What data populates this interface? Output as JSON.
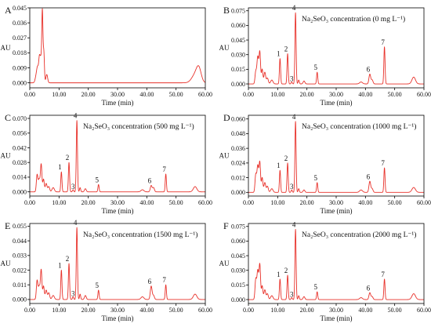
{
  "figure": {
    "trace_color": "#e8312a",
    "axis_color": "#000000"
  },
  "chart_data": [
    {
      "type": "line",
      "panel": "A",
      "title": "",
      "xlabel": "Time (min)",
      "ylabel": "AU",
      "xlim": [
        0,
        60
      ],
      "ylim": [
        -0.003,
        0.045
      ],
      "xticks": [
        "0.00",
        "10.00",
        "20.00",
        "30.00",
        "40.00",
        "50.00",
        "60.00"
      ],
      "yticks": [
        "0.000",
        "0.009",
        "0.018",
        "0.027",
        "0.036",
        "0.045"
      ],
      "baseline": 0.0,
      "peaks": [
        [
          2.2,
          0.004,
          0.35
        ],
        [
          2.7,
          0.008,
          0.3
        ],
        [
          3.3,
          0.014,
          0.25
        ],
        [
          3.8,
          0.013,
          0.25
        ],
        [
          4.3,
          0.042,
          0.2
        ],
        [
          4.8,
          0.018,
          0.2
        ],
        [
          5.8,
          0.005,
          0.3
        ],
        [
          56.6,
          0.005,
          1.2
        ],
        [
          57.8,
          0.007,
          0.8
        ]
      ],
      "peak_labels": []
    },
    {
      "type": "line",
      "panel": "B",
      "title": "Na₂SeO₃ concentration (0 mg L⁻¹)",
      "xlabel": "Time (min)",
      "ylabel": "AU",
      "xlim": [
        0,
        60
      ],
      "ylim": [
        -0.004,
        0.078
      ],
      "xticks": [
        "0.00",
        "10.00",
        "20.00",
        "30.00",
        "40.00",
        "50.00",
        "60.00"
      ],
      "yticks": [
        "0.000",
        "0.015",
        "0.030",
        "0.045",
        "0.060",
        "0.075"
      ],
      "baseline": 0.0,
      "peaks": [
        [
          2.5,
          0.012,
          0.25
        ],
        [
          3.2,
          0.028,
          0.3
        ],
        [
          3.9,
          0.032,
          0.25
        ],
        [
          4.7,
          0.015,
          0.25
        ],
        [
          5.6,
          0.012,
          0.3
        ],
        [
          6.5,
          0.006,
          0.3
        ],
        [
          8.0,
          0.004,
          0.4
        ],
        [
          10.8,
          0.026,
          0.2
        ],
        [
          13.4,
          0.031,
          0.2
        ],
        [
          14.8,
          0.002,
          0.2
        ],
        [
          16.1,
          0.073,
          0.2
        ],
        [
          17.2,
          0.004,
          0.2
        ],
        [
          19.0,
          0.003,
          0.3
        ],
        [
          23.5,
          0.012,
          0.2
        ],
        [
          38.5,
          0.002,
          0.5
        ],
        [
          41.5,
          0.01,
          0.3
        ],
        [
          42.3,
          0.004,
          0.3
        ],
        [
          46.5,
          0.038,
          0.2
        ],
        [
          56.5,
          0.007,
          0.6
        ]
      ],
      "peak_labels": [
        {
          "label": "1",
          "x": 10.8,
          "y": 0.026
        },
        {
          "label": "2",
          "x": 13.4,
          "y": 0.031
        },
        {
          "label": "3",
          "x": 14.8,
          "y": 0.002
        },
        {
          "label": "4",
          "x": 16.1,
          "y": 0.073
        },
        {
          "label": "5",
          "x": 23.5,
          "y": 0.012
        },
        {
          "label": "6",
          "x": 41.5,
          "y": 0.01
        },
        {
          "label": "7",
          "x": 46.5,
          "y": 0.038
        }
      ]
    },
    {
      "type": "line",
      "panel": "C",
      "title": "Na₂SeO₃ concentration (500 mg L⁻¹)",
      "xlabel": "Time (min)",
      "ylabel": "AU",
      "xlim": [
        0,
        60
      ],
      "ylim": [
        -0.004,
        0.073
      ],
      "xticks": [
        "0.00",
        "10.00",
        "20.00",
        "30.00",
        "40.00",
        "50.00",
        "60.00"
      ],
      "yticks": [
        "0.000",
        "0.014",
        "0.028",
        "0.042",
        "0.056",
        "0.070"
      ],
      "baseline": 0.0,
      "peaks": [
        [
          2.5,
          0.016,
          0.25
        ],
        [
          3.2,
          0.012,
          0.3
        ],
        [
          3.9,
          0.026,
          0.25
        ],
        [
          4.7,
          0.012,
          0.25
        ],
        [
          5.6,
          0.008,
          0.3
        ],
        [
          6.5,
          0.005,
          0.3
        ],
        [
          8.0,
          0.004,
          0.4
        ],
        [
          10.8,
          0.019,
          0.2
        ],
        [
          13.4,
          0.028,
          0.2
        ],
        [
          14.8,
          0.002,
          0.2
        ],
        [
          16.1,
          0.068,
          0.2
        ],
        [
          17.2,
          0.004,
          0.2
        ],
        [
          19.0,
          0.003,
          0.3
        ],
        [
          23.5,
          0.007,
          0.2
        ],
        [
          38.5,
          0.002,
          0.5
        ],
        [
          41.5,
          0.006,
          0.3
        ],
        [
          42.3,
          0.004,
          0.3
        ],
        [
          46.5,
          0.017,
          0.2
        ],
        [
          56.5,
          0.005,
          0.6
        ]
      ],
      "peak_labels": [
        {
          "label": "1",
          "x": 10.8,
          "y": 0.019
        },
        {
          "label": "2",
          "x": 13.4,
          "y": 0.028
        },
        {
          "label": "3",
          "x": 14.8,
          "y": 0.002
        },
        {
          "label": "4",
          "x": 16.1,
          "y": 0.068
        },
        {
          "label": "5",
          "x": 23.5,
          "y": 0.007
        },
        {
          "label": "6",
          "x": 41.5,
          "y": 0.006
        },
        {
          "label": "7",
          "x": 46.5,
          "y": 0.017
        }
      ]
    },
    {
      "type": "line",
      "panel": "D",
      "title": "Na₂SeO₃ concentration (1000 mg L⁻¹)",
      "xlabel": "Time (min)",
      "ylabel": "AU",
      "xlim": [
        0,
        60
      ],
      "ylim": [
        -0.003,
        0.063
      ],
      "xticks": [
        "0.00",
        "10.00",
        "20.00",
        "30.00",
        "40.00",
        "50.00",
        "60.00"
      ],
      "yticks": [
        "0.000",
        "0.012",
        "0.024",
        "0.036",
        "0.048",
        "0.060"
      ],
      "baseline": 0.0,
      "peaks": [
        [
          2.5,
          0.014,
          0.25
        ],
        [
          3.2,
          0.022,
          0.3
        ],
        [
          3.9,
          0.024,
          0.25
        ],
        [
          4.7,
          0.012,
          0.25
        ],
        [
          5.6,
          0.008,
          0.3
        ],
        [
          6.5,
          0.005,
          0.3
        ],
        [
          8.0,
          0.003,
          0.4
        ],
        [
          10.8,
          0.018,
          0.2
        ],
        [
          13.4,
          0.024,
          0.2
        ],
        [
          14.8,
          0.002,
          0.2
        ],
        [
          16.1,
          0.058,
          0.2
        ],
        [
          17.2,
          0.003,
          0.2
        ],
        [
          19.0,
          0.002,
          0.3
        ],
        [
          23.5,
          0.008,
          0.2
        ],
        [
          38.5,
          0.002,
          0.5
        ],
        [
          41.5,
          0.009,
          0.3
        ],
        [
          42.3,
          0.003,
          0.3
        ],
        [
          46.5,
          0.02,
          0.2
        ],
        [
          56.5,
          0.004,
          0.6
        ]
      ],
      "peak_labels": [
        {
          "label": "1",
          "x": 10.8,
          "y": 0.018
        },
        {
          "label": "2",
          "x": 13.4,
          "y": 0.024
        },
        {
          "label": "3",
          "x": 14.8,
          "y": 0.002
        },
        {
          "label": "4",
          "x": 16.1,
          "y": 0.058
        },
        {
          "label": "5",
          "x": 23.5,
          "y": 0.008
        },
        {
          "label": "6",
          "x": 41.5,
          "y": 0.009
        },
        {
          "label": "7",
          "x": 46.5,
          "y": 0.02
        }
      ]
    },
    {
      "type": "line",
      "panel": "E",
      "title": "Na₂SeO₃ concentration (1500 mg L⁻¹)",
      "xlabel": "Time (min)",
      "ylabel": "AU",
      "xlim": [
        0,
        60
      ],
      "ylim": [
        -0.003,
        0.057
      ],
      "xticks": [
        "0.00",
        "10.00",
        "20.00",
        "30.00",
        "40.00",
        "50.00",
        "60.00"
      ],
      "yticks": [
        "0.000",
        "0.011",
        "0.022",
        "0.033",
        "0.044",
        "0.055"
      ],
      "baseline": 0.0,
      "peaks": [
        [
          2.5,
          0.014,
          0.25
        ],
        [
          3.2,
          0.01,
          0.3
        ],
        [
          3.9,
          0.022,
          0.25
        ],
        [
          4.7,
          0.01,
          0.25
        ],
        [
          5.6,
          0.007,
          0.3
        ],
        [
          6.5,
          0.005,
          0.3
        ],
        [
          8.0,
          0.003,
          0.4
        ],
        [
          10.8,
          0.022,
          0.2
        ],
        [
          13.4,
          0.027,
          0.2
        ],
        [
          14.8,
          0.002,
          0.2
        ],
        [
          16.1,
          0.054,
          0.2
        ],
        [
          17.2,
          0.004,
          0.2
        ],
        [
          19.0,
          0.003,
          0.3
        ],
        [
          23.5,
          0.007,
          0.2
        ],
        [
          38.5,
          0.002,
          0.5
        ],
        [
          41.5,
          0.01,
          0.3
        ],
        [
          42.3,
          0.003,
          0.3
        ],
        [
          46.5,
          0.011,
          0.2
        ],
        [
          56.5,
          0.004,
          0.6
        ]
      ],
      "peak_labels": [
        {
          "label": "1",
          "x": 10.8,
          "y": 0.022
        },
        {
          "label": "2",
          "x": 13.4,
          "y": 0.027
        },
        {
          "label": "3",
          "x": 14.8,
          "y": 0.002
        },
        {
          "label": "4",
          "x": 16.1,
          "y": 0.054
        },
        {
          "label": "5",
          "x": 23.5,
          "y": 0.007
        },
        {
          "label": "6",
          "x": 41.5,
          "y": 0.01
        },
        {
          "label": "7",
          "x": 46.5,
          "y": 0.011
        }
      ]
    },
    {
      "type": "line",
      "panel": "F",
      "title": "Na₂SeO₃ concentration (2000 mg L⁻¹)",
      "xlabel": "Time (min)",
      "ylabel": "AU",
      "xlim": [
        0,
        60
      ],
      "ylim": [
        -0.004,
        0.078
      ],
      "xticks": [
        "0.00",
        "10.00",
        "20.00",
        "30.00",
        "40.00",
        "50.00",
        "60.00"
      ],
      "yticks": [
        "0.000",
        "0.015",
        "0.030",
        "0.045",
        "0.060",
        "0.075"
      ],
      "baseline": 0.0,
      "peaks": [
        [
          2.5,
          0.02,
          0.25
        ],
        [
          3.2,
          0.03,
          0.3
        ],
        [
          3.9,
          0.035,
          0.25
        ],
        [
          4.7,
          0.014,
          0.25
        ],
        [
          5.6,
          0.01,
          0.3
        ],
        [
          6.5,
          0.006,
          0.3
        ],
        [
          8.0,
          0.004,
          0.4
        ],
        [
          10.8,
          0.021,
          0.2
        ],
        [
          13.4,
          0.025,
          0.2
        ],
        [
          14.8,
          0.002,
          0.2
        ],
        [
          16.1,
          0.072,
          0.2
        ],
        [
          17.2,
          0.004,
          0.2
        ],
        [
          19.0,
          0.003,
          0.3
        ],
        [
          23.5,
          0.008,
          0.2
        ],
        [
          38.5,
          0.002,
          0.5
        ],
        [
          41.5,
          0.007,
          0.3
        ],
        [
          42.3,
          0.003,
          0.3
        ],
        [
          46.5,
          0.021,
          0.2
        ],
        [
          56.5,
          0.006,
          0.6
        ]
      ],
      "peak_labels": [
        {
          "label": "1",
          "x": 10.8,
          "y": 0.021
        },
        {
          "label": "2",
          "x": 13.4,
          "y": 0.025
        },
        {
          "label": "3",
          "x": 14.8,
          "y": 0.002
        },
        {
          "label": "4",
          "x": 16.1,
          "y": 0.072
        },
        {
          "label": "5",
          "x": 23.5,
          "y": 0.008
        },
        {
          "label": "6",
          "x": 41.5,
          "y": 0.007
        },
        {
          "label": "7",
          "x": 46.5,
          "y": 0.021
        }
      ]
    }
  ]
}
